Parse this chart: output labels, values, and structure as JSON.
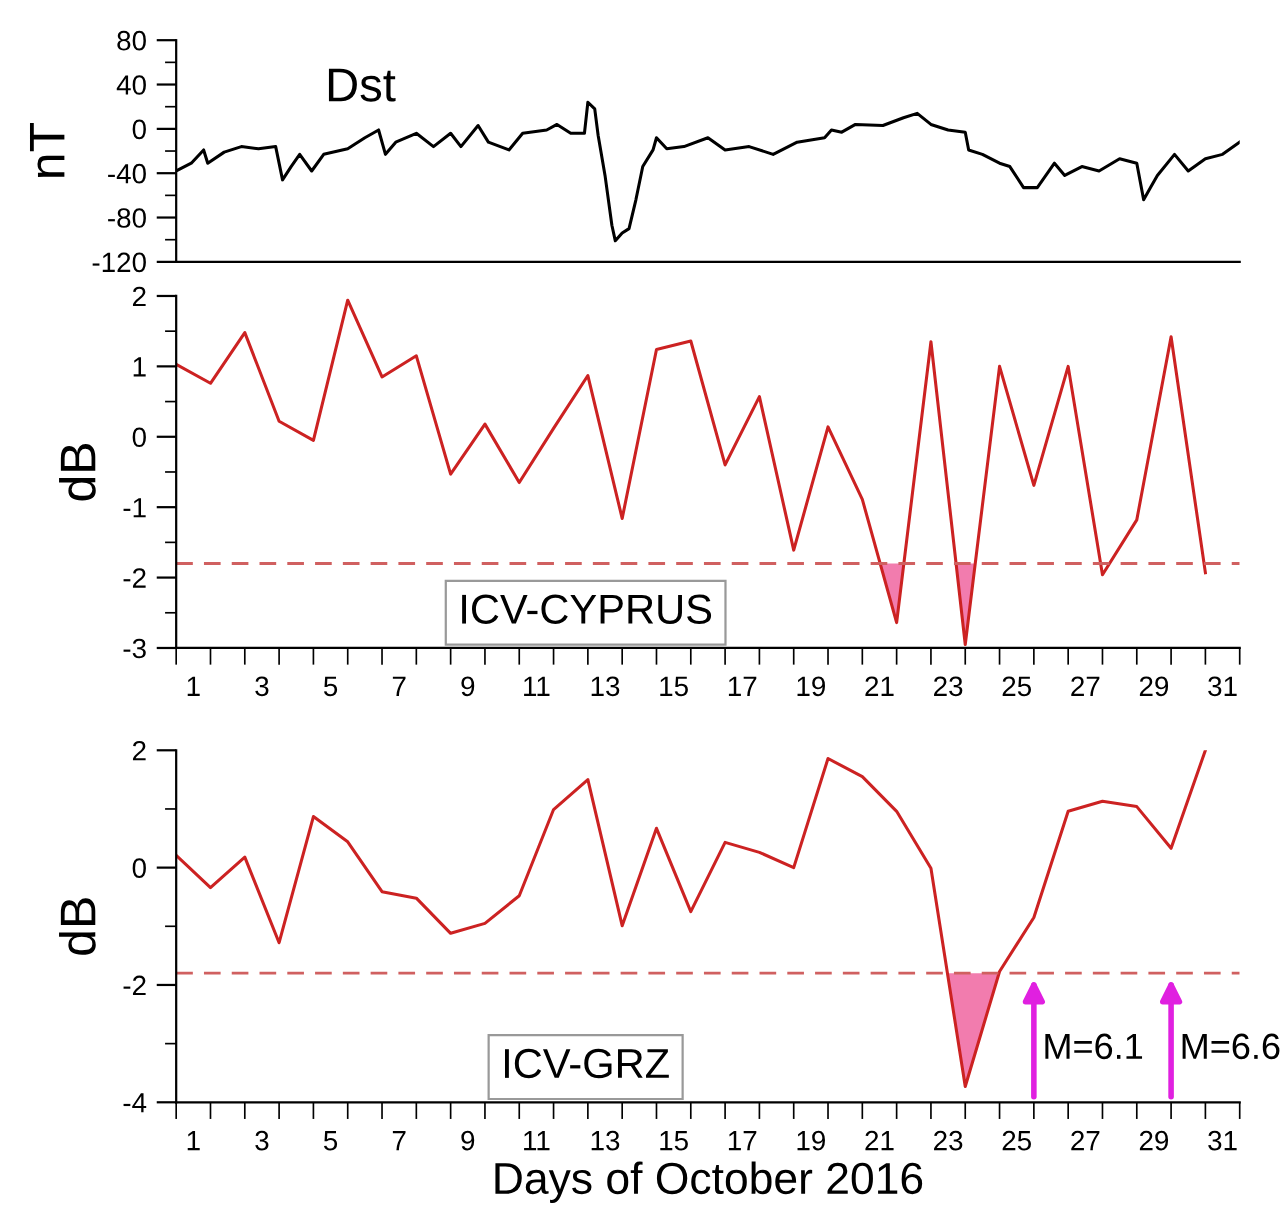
{
  "chart_data": [
    {
      "type": "line",
      "ylabel": "nT",
      "annotations": [
        "Dst"
      ],
      "xlim": [
        0.5,
        31.5
      ],
      "ylim": [
        -120,
        80
      ],
      "yticks": [
        80,
        {
          "value": 60,
          "label": null
        },
        40,
        {
          "value": 20,
          "label": null
        },
        0,
        {
          "value": -20,
          "label": null
        },
        -40,
        {
          "value": -60,
          "label": null
        },
        -80,
        {
          "value": -100,
          "label": null
        },
        -120
      ],
      "tick_labels": "y",
      "grid": false,
      "legend": false,
      "marker": "none",
      "series": [
        {
          "color": "#000000",
          "x": [
            0.5,
            0.94,
            1.3,
            1.42,
            1.9,
            2.4,
            2.9,
            3.4,
            3.6,
            3.85,
            4.1,
            4.45,
            4.8,
            5.5,
            6.0,
            6.4,
            6.6,
            6.9,
            7.5,
            8.0,
            8.5,
            8.8,
            9.3,
            9.6,
            10.2,
            10.6,
            11.3,
            11.6,
            12.0,
            12.4,
            12.5,
            12.7,
            12.8,
            13.0,
            13.2,
            13.3,
            13.5,
            13.7,
            13.9,
            14.1,
            14.4,
            14.5,
            14.8,
            15.3,
            16.0,
            16.5,
            17.2,
            17.9,
            18.6,
            19.4,
            19.6,
            19.9,
            20.3,
            21.1,
            21.7,
            22.1,
            22.5,
            23.0,
            23.5,
            23.6,
            24.0,
            24.5,
            24.8,
            25.2,
            25.6,
            26.1,
            26.4,
            26.9,
            27.4,
            28.0,
            28.5,
            28.7,
            28.9,
            29.1,
            29.6,
            30.0,
            30.5,
            31.0,
            31.5
          ],
          "values": [
            -38,
            -31,
            -19,
            -31,
            -21,
            -16,
            -18,
            -16,
            -46,
            -34,
            -23,
            -38,
            -23,
            -18,
            -8,
            -1,
            -23,
            -12,
            -4,
            -16,
            -4,
            -16,
            3,
            -12,
            -19,
            -4,
            -1,
            4,
            -4,
            -4,
            24,
            18,
            -6,
            -42,
            -87,
            -101,
            -94,
            -90,
            -64,
            -34,
            -19,
            -8,
            -18,
            -16,
            -8,
            -19,
            -16,
            -23,
            -12,
            -8,
            -1,
            -3,
            4,
            3,
            10,
            14,
            4,
            -1,
            -3,
            -19,
            -23,
            -31,
            -34,
            -53,
            -53,
            -31,
            -42,
            -34,
            -38,
            -27,
            -31,
            -64,
            -53,
            -42,
            -23,
            -38,
            -27,
            -23,
            -12
          ]
        }
      ]
    },
    {
      "type": "line",
      "ylabel": "dB",
      "annotations": [
        "ICV-CYPRUS"
      ],
      "xlim": [
        0.5,
        31.5
      ],
      "ylim": [
        -3,
        2
      ],
      "xticks": [
        {
          "value": 0.5,
          "label": null
        },
        1,
        {
          "value": 1.5,
          "label": null
        },
        {
          "value": 2.5,
          "label": null
        },
        3,
        {
          "value": 3.5,
          "label": null
        },
        {
          "value": 4.5,
          "label": null
        },
        5,
        {
          "value": 5.5,
          "label": null
        },
        {
          "value": 6.5,
          "label": null
        },
        7,
        {
          "value": 7.5,
          "label": null
        },
        {
          "value": 8.5,
          "label": null
        },
        9,
        {
          "value": 9.5,
          "label": null
        },
        {
          "value": 10.5,
          "label": null
        },
        11,
        {
          "value": 11.5,
          "label": null
        },
        {
          "value": 12.5,
          "label": null
        },
        13,
        {
          "value": 13.5,
          "label": null
        },
        {
          "value": 14.5,
          "label": null
        },
        15,
        {
          "value": 15.5,
          "label": null
        },
        {
          "value": 16.5,
          "label": null
        },
        17,
        {
          "value": 17.5,
          "label": null
        },
        {
          "value": 18.5,
          "label": null
        },
        19,
        {
          "value": 19.5,
          "label": null
        },
        {
          "value": 20.5,
          "label": null
        },
        21,
        {
          "value": 21.5,
          "label": null
        },
        {
          "value": 22.5,
          "label": null
        },
        23,
        {
          "value": 23.5,
          "label": null
        },
        {
          "value": 24.5,
          "label": null
        },
        25,
        {
          "value": 25.5,
          "label": null
        },
        {
          "value": 26.5,
          "label": null
        },
        27,
        {
          "value": 27.5,
          "label": null
        },
        {
          "value": 28.5,
          "label": null
        },
        29,
        {
          "value": 29.5,
          "label": null
        },
        {
          "value": 30.5,
          "label": null
        },
        31,
        {
          "value": 31.5,
          "label": null
        }
      ],
      "yticks": [
        2,
        {
          "value": 1.5,
          "label": null
        },
        1,
        {
          "value": 0.5,
          "label": null
        },
        0,
        {
          "value": -0.5,
          "label": null
        },
        -1,
        {
          "value": -1.5,
          "label": null
        },
        -2,
        {
          "value": -2.5,
          "label": null
        },
        -3
      ],
      "grid": false,
      "legend": false,
      "marker": "none",
      "ref_lines": [
        {
          "axis": "y",
          "value": -1.8,
          "color": "#d06060",
          "line_style": "dashed"
        }
      ],
      "series": [
        {
          "type": "area",
          "color": "#f27cae",
          "x": [
            21.02,
            21.5,
            21.71
          ],
          "values": [
            -1.8,
            -2.64,
            -1.8
          ]
        },
        {
          "type": "area",
          "color": "#f27cae",
          "x": [
            23.23,
            23.5,
            23.79
          ],
          "values": [
            -1.8,
            -2.95,
            -1.8
          ]
        },
        {
          "color": "#cc2222",
          "x": [
            0.5,
            1.5,
            2.5,
            3.5,
            4.5,
            5.5,
            6.5,
            7.5,
            8.5,
            9.5,
            10.5,
            11.5,
            12.5,
            13.5,
            14.5,
            15.5,
            16.5,
            17.5,
            18.5,
            19.5,
            20.5,
            21.5,
            22.5,
            23.5,
            24.5,
            25.5,
            26.5,
            27.5,
            28.5,
            29.5,
            30.5
          ],
          "values": [
            1.03,
            0.76,
            1.48,
            0.22,
            -0.05,
            1.94,
            0.85,
            1.15,
            -0.53,
            0.18,
            -0.65,
            0.12,
            0.87,
            -1.16,
            1.24,
            1.36,
            -0.4,
            0.57,
            -1.61,
            0.14,
            -0.89,
            -2.64,
            1.35,
            -2.95,
            1.0,
            -0.69,
            1.0,
            -1.96,
            -1.18,
            1.42,
            -1.93
          ]
        }
      ]
    },
    {
      "type": "line",
      "ylabel": "dB",
      "xlabel": "Days of October 2016",
      "xlim": [
        0.5,
        31.5
      ],
      "ylim": [
        -4,
        2
      ],
      "annotations": [
        "ICV-GRZ",
        {
          "text": "M=6.1",
          "x": 25.5,
          "y": -1.8
        },
        {
          "text": "M=6.6",
          "x": 29.5,
          "y": -1.8
        }
      ],
      "xticks": [
        {
          "value": 0.5,
          "label": null
        },
        1,
        {
          "value": 1.5,
          "label": null
        },
        {
          "value": 2.5,
          "label": null
        },
        3,
        {
          "value": 3.5,
          "label": null
        },
        {
          "value": 4.5,
          "label": null
        },
        5,
        {
          "value": 5.5,
          "label": null
        },
        {
          "value": 6.5,
          "label": null
        },
        7,
        {
          "value": 7.5,
          "label": null
        },
        {
          "value": 8.5,
          "label": null
        },
        9,
        {
          "value": 9.5,
          "label": null
        },
        {
          "value": 10.5,
          "label": null
        },
        11,
        {
          "value": 11.5,
          "label": null
        },
        {
          "value": 12.5,
          "label": null
        },
        13,
        {
          "value": 13.5,
          "label": null
        },
        {
          "value": 14.5,
          "label": null
        },
        15,
        {
          "value": 15.5,
          "label": null
        },
        {
          "value": 16.5,
          "label": null
        },
        17,
        {
          "value": 17.5,
          "label": null
        },
        {
          "value": 18.5,
          "label": null
        },
        19,
        {
          "value": 19.5,
          "label": null
        },
        {
          "value": 20.5,
          "label": null
        },
        21,
        {
          "value": 21.5,
          "label": null
        },
        {
          "value": 22.5,
          "label": null
        },
        23,
        {
          "value": 23.5,
          "label": null
        },
        {
          "value": 24.5,
          "label": null
        },
        25,
        {
          "value": 25.5,
          "label": null
        },
        {
          "value": 26.5,
          "label": null
        },
        27,
        {
          "value": 27.5,
          "label": null
        },
        {
          "value": 28.5,
          "label": null
        },
        29,
        {
          "value": 29.5,
          "label": null
        },
        {
          "value": 30.5,
          "label": null
        },
        31,
        {
          "value": 31.5,
          "label": null
        }
      ],
      "yticks": [
        2,
        {
          "value": 1,
          "label": null
        },
        0,
        {
          "value": -1,
          "label": null
        },
        -2,
        {
          "value": -3,
          "label": null
        },
        -4
      ],
      "grid": false,
      "legend": false,
      "marker": "none",
      "ref_lines": [
        {
          "axis": "y",
          "value": -1.8,
          "color": "#d06060",
          "line_style": "dashed"
        }
      ],
      "series": [
        {
          "type": "area",
          "color": "#f27cae",
          "x": [
            22.98,
            23.5,
            24.48
          ],
          "values": [
            -1.8,
            -3.73,
            -1.8
          ]
        },
        {
          "color": "#cc2222",
          "x": [
            0.5,
            1.5,
            2.5,
            3.5,
            4.5,
            5.5,
            6.5,
            7.5,
            8.5,
            9.5,
            10.5,
            11.5,
            12.5,
            13.5,
            14.5,
            15.5,
            16.5,
            17.5,
            18.5,
            19.5,
            20.5,
            21.5,
            22.5,
            23.5,
            24.5,
            25.5,
            26.5,
            27.5,
            28.5,
            29.5,
            30.5
          ],
          "values": [
            0.21,
            -0.34,
            0.18,
            -1.28,
            0.87,
            0.44,
            -0.41,
            -0.52,
            -1.12,
            -0.95,
            -0.48,
            0.99,
            1.5,
            -0.99,
            0.67,
            -0.75,
            0.43,
            0.26,
            0.0,
            1.86,
            1.55,
            0.96,
            -0.01,
            -3.73,
            -1.77,
            -0.85,
            0.96,
            1.13,
            1.04,
            0.33,
            2.0
          ]
        }
      ]
    }
  ]
}
